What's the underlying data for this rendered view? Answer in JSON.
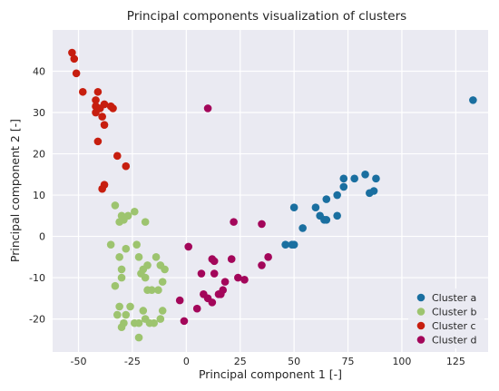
{
  "chart_data": {
    "type": "scatter",
    "title": "Principal components visualization of clusters",
    "xlabel": "Principal component 1 [-]",
    "ylabel": "Principal component 2 [-]",
    "xlim": [
      -62,
      140
    ],
    "ylim": [
      -28,
      50
    ],
    "xticks": [
      -50,
      -25,
      0,
      25,
      50,
      75,
      100,
      125
    ],
    "yticks": [
      -20,
      -10,
      0,
      10,
      20,
      30,
      40
    ],
    "grid": true,
    "legend_position": "bottom-right",
    "background": "#eaeaf2",
    "series": [
      {
        "name": "Cluster a",
        "color": "#1a6fa0",
        "points": [
          [
            133,
            33
          ],
          [
            88,
            14
          ],
          [
            83,
            15
          ],
          [
            78,
            14
          ],
          [
            73,
            14
          ],
          [
            87,
            11
          ],
          [
            85,
            10.5
          ],
          [
            73,
            12
          ],
          [
            70,
            10
          ],
          [
            65,
            9
          ],
          [
            60,
            7
          ],
          [
            50,
            7
          ],
          [
            70,
            5
          ],
          [
            62,
            5
          ],
          [
            65,
            4
          ],
          [
            64,
            4
          ],
          [
            54,
            2
          ],
          [
            50,
            -2
          ],
          [
            49,
            -2
          ],
          [
            46,
            -2
          ]
        ]
      },
      {
        "name": "Cluster b",
        "color": "#9dc46f",
        "points": [
          [
            -33,
            7.5
          ],
          [
            -30,
            5
          ],
          [
            -29,
            4
          ],
          [
            -27,
            5
          ],
          [
            -31,
            3.5
          ],
          [
            -24,
            6
          ],
          [
            -19,
            3.5
          ],
          [
            -35,
            -2
          ],
          [
            -23,
            -2
          ],
          [
            -28,
            -3
          ],
          [
            -31,
            -5
          ],
          [
            -22,
            -5
          ],
          [
            -14,
            -5
          ],
          [
            -18,
            -7
          ],
          [
            -20,
            -8
          ],
          [
            -10,
            -8
          ],
          [
            -12,
            -7
          ],
          [
            -30,
            -8
          ],
          [
            -30,
            -10
          ],
          [
            -19,
            -10
          ],
          [
            -21,
            -9
          ],
          [
            -33,
            -12
          ],
          [
            -11,
            -11
          ],
          [
            -13,
            -13
          ],
          [
            -16,
            -13
          ],
          [
            -18,
            -13
          ],
          [
            -31,
            -17
          ],
          [
            -26,
            -17
          ],
          [
            -11,
            -18
          ],
          [
            -20,
            -18
          ],
          [
            -32,
            -19
          ],
          [
            -28,
            -19
          ],
          [
            -19,
            -20
          ],
          [
            -24,
            -21
          ],
          [
            -22,
            -21
          ],
          [
            -29,
            -21
          ],
          [
            -15,
            -21
          ],
          [
            -17,
            -21
          ],
          [
            -12,
            -20
          ],
          [
            -30,
            -22
          ],
          [
            -22,
            -24.5
          ]
        ]
      },
      {
        "name": "Cluster c",
        "color": "#c71e0f",
        "points": [
          [
            -53,
            44.5
          ],
          [
            -52,
            43
          ],
          [
            -51,
            39.5
          ],
          [
            -48,
            35
          ],
          [
            -41,
            35
          ],
          [
            -42,
            33
          ],
          [
            -42,
            31.5
          ],
          [
            -38,
            32
          ],
          [
            -35,
            31.5
          ],
          [
            -34,
            31
          ],
          [
            -40,
            31
          ],
          [
            -42,
            30
          ],
          [
            -39,
            29
          ],
          [
            -38,
            27
          ],
          [
            -41,
            23
          ],
          [
            -32,
            19.5
          ],
          [
            -28,
            17
          ],
          [
            -38,
            12.5
          ],
          [
            -39,
            11.5
          ]
        ]
      },
      {
        "name": "Cluster d",
        "color": "#a3065a",
        "points": [
          [
            10,
            31
          ],
          [
            22,
            3.5
          ],
          [
            35,
            3
          ],
          [
            1,
            -2.5
          ],
          [
            38,
            -5
          ],
          [
            21,
            -5.5
          ],
          [
            12,
            -5.5
          ],
          [
            13,
            -6
          ],
          [
            35,
            -7
          ],
          [
            7,
            -9
          ],
          [
            13,
            -9
          ],
          [
            -3,
            -15.5
          ],
          [
            24,
            -10
          ],
          [
            27,
            -10.5
          ],
          [
            18,
            -11
          ],
          [
            17,
            -13
          ],
          [
            8,
            -14
          ],
          [
            15,
            -14
          ],
          [
            16,
            -14
          ],
          [
            10,
            -15
          ],
          [
            12,
            -16
          ],
          [
            5,
            -17.5
          ],
          [
            -1,
            -20.5
          ]
        ]
      }
    ]
  }
}
